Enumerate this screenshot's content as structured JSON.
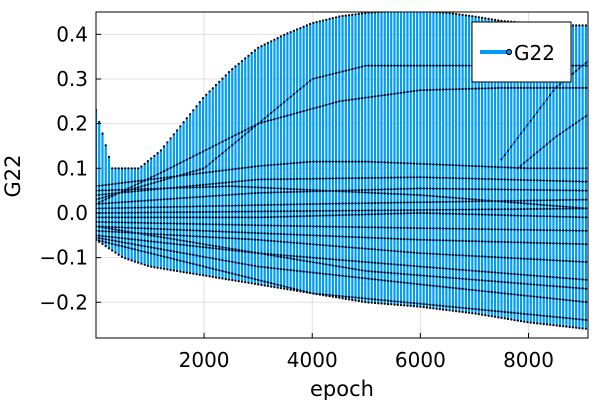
{
  "chart_data": {
    "type": "line",
    "title": "",
    "xlabel": "epoch",
    "ylabel": "G22",
    "xlim": [
      1,
      9100
    ],
    "ylim": [
      -0.28,
      0.45
    ],
    "xticks": [
      2000,
      4000,
      6000,
      8000
    ],
    "xtick_labels": [
      "2000",
      "4000",
      "6000",
      "8000"
    ],
    "yticks": [
      -0.2,
      -0.1,
      0.0,
      0.1,
      0.2,
      0.3,
      0.4
    ],
    "ytick_labels": [
      "−0.2",
      "−0.1",
      "0.0",
      "0.1",
      "0.2",
      "0.3",
      "0.4"
    ],
    "grid": true,
    "legend": {
      "position": "top-right",
      "entries": [
        "G22"
      ]
    },
    "series": [
      {
        "name": "G22",
        "color": "#009af9",
        "marker": "circle",
        "marker_color": "#000000",
        "sample_interval": 60,
        "upper_envelope": [
          [
            1,
            0.23
          ],
          [
            300,
            0.1
          ],
          [
            800,
            0.1
          ],
          [
            1200,
            0.14
          ],
          [
            1600,
            0.2
          ],
          [
            2000,
            0.26
          ],
          [
            2500,
            0.32
          ],
          [
            3000,
            0.37
          ],
          [
            3500,
            0.4
          ],
          [
            4000,
            0.425
          ],
          [
            4500,
            0.44
          ],
          [
            5000,
            0.448
          ],
          [
            5500,
            0.452
          ],
          [
            6000,
            0.452
          ],
          [
            6500,
            0.448
          ],
          [
            7000,
            0.44
          ],
          [
            7500,
            0.43
          ],
          [
            8000,
            0.425
          ],
          [
            8500,
            0.42
          ],
          [
            9100,
            0.42
          ]
        ],
        "lower_envelope": [
          [
            1,
            -0.06
          ],
          [
            500,
            -0.1
          ],
          [
            1000,
            -0.12
          ],
          [
            2000,
            -0.14
          ],
          [
            3000,
            -0.16
          ],
          [
            4000,
            -0.18
          ],
          [
            5000,
            -0.2
          ],
          [
            6000,
            -0.21
          ],
          [
            7000,
            -0.225
          ],
          [
            8000,
            -0.245
          ],
          [
            9100,
            -0.26
          ]
        ],
        "traced_paths": [
          [
            [
              1,
              0.03
            ],
            [
              2000,
              0.1
            ],
            [
              4000,
              0.3
            ],
            [
              5000,
              0.33
            ],
            [
              6000,
              0.33
            ],
            [
              7000,
              0.33
            ],
            [
              8000,
              0.33
            ],
            [
              9100,
              0.33
            ]
          ],
          [
            [
              1,
              0.02
            ],
            [
              1200,
              0.09
            ],
            [
              3000,
              0.2
            ],
            [
              4500,
              0.25
            ],
            [
              6000,
              0.275
            ],
            [
              7500,
              0.28
            ],
            [
              9100,
              0.28
            ]
          ],
          [
            [
              7500,
              0.12
            ],
            [
              8000,
              0.2
            ],
            [
              8500,
              0.28
            ],
            [
              9100,
              0.34
            ]
          ],
          [
            [
              7800,
              0.1
            ],
            [
              8500,
              0.17
            ],
            [
              9100,
              0.22
            ]
          ],
          [
            [
              1,
              0.06
            ],
            [
              2000,
              0.09
            ],
            [
              3000,
              0.105
            ],
            [
              4000,
              0.115
            ],
            [
              5000,
              0.115
            ],
            [
              6000,
              0.11
            ],
            [
              7000,
              0.105
            ],
            [
              8000,
              0.1
            ],
            [
              9100,
              0.1
            ]
          ],
          [
            [
              1,
              0.04
            ],
            [
              3000,
              0.075
            ],
            [
              6000,
              0.08
            ],
            [
              9100,
              0.07
            ]
          ],
          [
            [
              1,
              0.02
            ],
            [
              3000,
              0.045
            ],
            [
              6000,
              0.055
            ],
            [
              9100,
              0.05
            ]
          ],
          [
            [
              1,
              0.01
            ],
            [
              4000,
              0.02
            ],
            [
              9100,
              0.03
            ]
          ],
          [
            [
              1,
              0.0
            ],
            [
              4500,
              0.005
            ],
            [
              9100,
              0.01
            ]
          ],
          [
            [
              1,
              -0.01
            ],
            [
              3000,
              -0.01
            ],
            [
              6000,
              0.0
            ],
            [
              9100,
              -0.01
            ]
          ],
          [
            [
              1,
              -0.02
            ],
            [
              4000,
              -0.03
            ],
            [
              9100,
              -0.04
            ]
          ],
          [
            [
              1,
              -0.03
            ],
            [
              3000,
              -0.045
            ],
            [
              6000,
              -0.06
            ],
            [
              9100,
              -0.07
            ]
          ],
          [
            [
              1,
              -0.04
            ],
            [
              3000,
              -0.06
            ],
            [
              6000,
              -0.09
            ],
            [
              9100,
              -0.11
            ]
          ],
          [
            [
              1,
              -0.05
            ],
            [
              3000,
              -0.09
            ],
            [
              6000,
              -0.12
            ],
            [
              9100,
              -0.15
            ]
          ],
          [
            [
              1,
              -0.055
            ],
            [
              3000,
              -0.12
            ],
            [
              6000,
              -0.16
            ],
            [
              9100,
              -0.2
            ]
          ],
          [
            [
              1,
              -0.06
            ],
            [
              4000,
              -0.18
            ],
            [
              7000,
              -0.215
            ],
            [
              9100,
              -0.24
            ]
          ],
          [
            [
              1,
              -0.03
            ],
            [
              2000,
              -0.07
            ],
            [
              5000,
              -0.13
            ],
            [
              9100,
              -0.17
            ]
          ],
          [
            [
              1,
              0.05
            ],
            [
              2500,
              0.06
            ],
            [
              6000,
              0.04
            ],
            [
              9100,
              0.01
            ]
          ]
        ]
      }
    ]
  }
}
